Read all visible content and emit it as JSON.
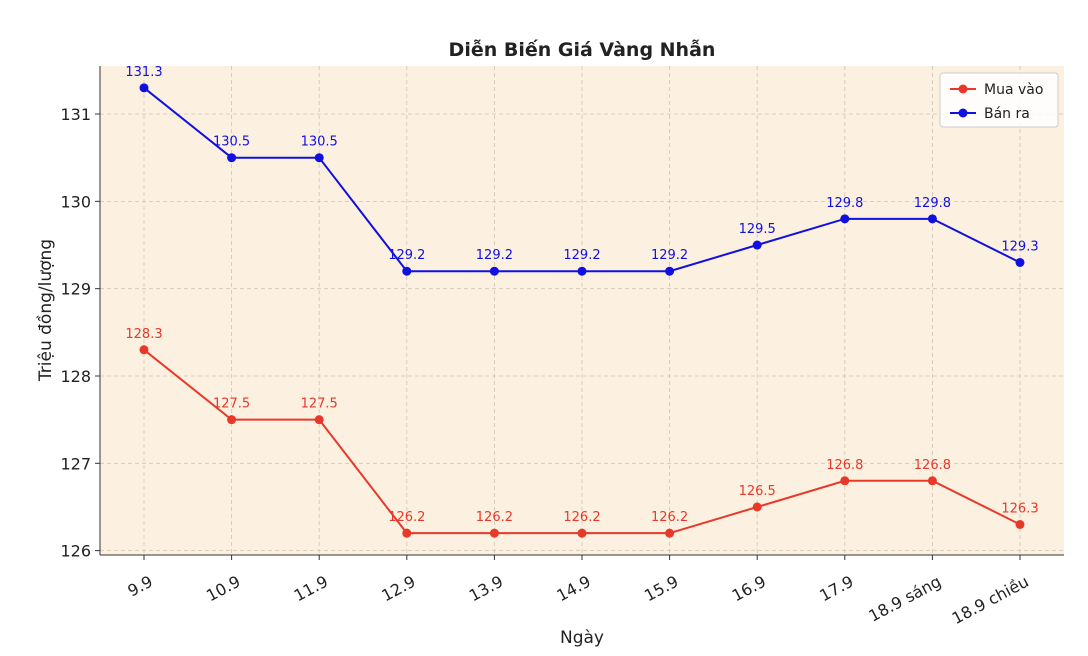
{
  "chart_data": {
    "type": "line",
    "title": "Diễn Biến Giá Vàng Nhẫn",
    "xlabel": "Ngày",
    "ylabel": "Triệu đồng/lượng",
    "categories": [
      "9.9",
      "10.9",
      "11.9",
      "12.9",
      "13.9",
      "14.9",
      "15.9",
      "16.9",
      "17.9",
      "18.9 sáng",
      "18.9 chiều"
    ],
    "series": [
      {
        "name": "Mua vào",
        "color": "#e8382a",
        "values": [
          128.3,
          127.5,
          127.5,
          126.2,
          126.2,
          126.2,
          126.2,
          126.5,
          126.8,
          126.8,
          126.3
        ]
      },
      {
        "name": "Bán ra",
        "color": "#1010e0",
        "values": [
          131.3,
          130.5,
          130.5,
          129.2,
          129.2,
          129.2,
          129.2,
          129.5,
          129.8,
          129.8,
          129.3
        ]
      }
    ],
    "ylim": [
      125.95,
      131.55
    ],
    "yticks": [
      126,
      127,
      128,
      129,
      130,
      131
    ],
    "grid": true,
    "legend": "top-right",
    "background": "#fcf1e0"
  }
}
